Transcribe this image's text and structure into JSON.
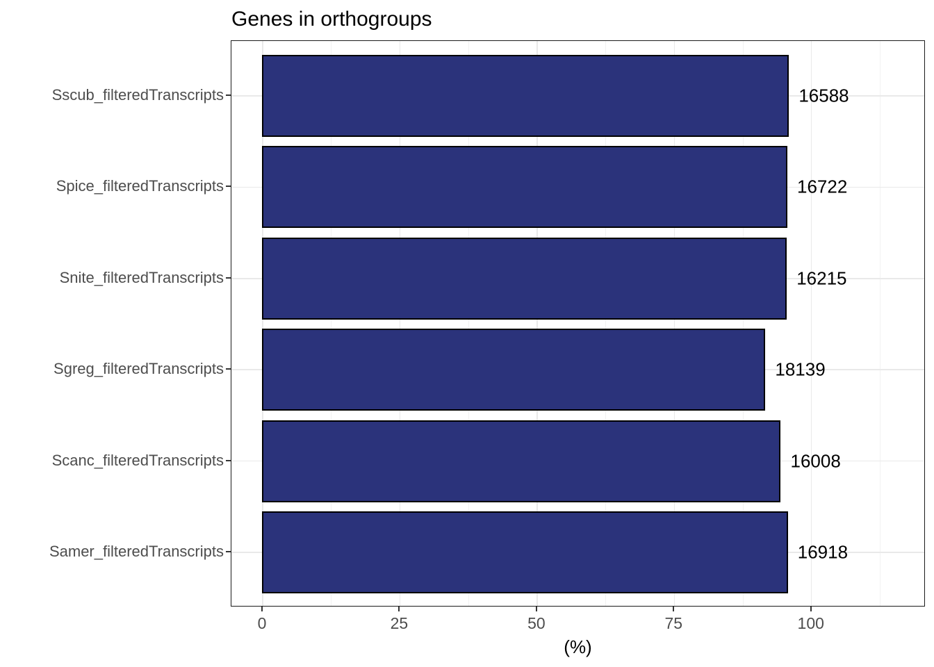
{
  "chart_data": {
    "type": "bar",
    "orientation": "horizontal",
    "title": "Genes in orthogroups",
    "xlabel": "(%)",
    "ylabel": "",
    "categories": [
      "Sscub_filteredTranscripts",
      "Spice_filteredTranscripts",
      "Snite_filteredTranscripts",
      "Sgreg_filteredTranscripts",
      "Scanc_filteredTranscripts",
      "Samer_filteredTranscripts"
    ],
    "values_percent": [
      95.9,
      95.6,
      95.5,
      91.6,
      94.4,
      95.7
    ],
    "bar_labels": [
      "16588",
      "16722",
      "16215",
      "18139",
      "16008",
      "16918"
    ],
    "x_ticks": [
      0,
      25,
      50,
      75,
      100
    ],
    "x_minor_ticks": [
      12.5,
      37.5,
      62.5,
      87.5,
      112.5
    ],
    "xlim": [
      -5.7,
      120.8
    ],
    "grid": true,
    "legend": false,
    "colors": {
      "bar_fill": "#2B337B",
      "bar_stroke": "#000000",
      "grid_major": "#E9E9E9",
      "grid_minor": "#F2F2F2",
      "panel_border": "#1A1A1A",
      "axis_text": "#4D4D4D",
      "tick_mark": "#333333",
      "title_text": "#000000",
      "label_text": "#000000",
      "background": "#FFFFFF"
    }
  }
}
